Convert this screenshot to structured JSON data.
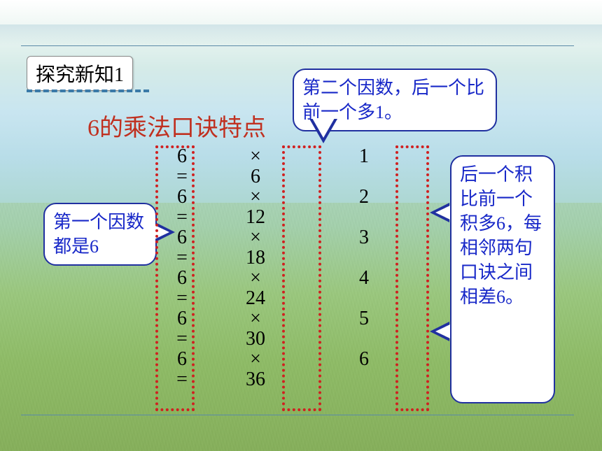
{
  "tab_label": "探究新知1",
  "title": "6的乘法口诀特点",
  "bubble_top": "第二个因数，后一个比前一个多1。",
  "bubble_left": "第一个因数都是6",
  "bubble_right": "后一个积比前一个积多6，每相邻两句口诀之间相差6。",
  "equations": {
    "factor1": [
      "6",
      "6",
      "6",
      "6",
      "6",
      "6"
    ],
    "op": "×",
    "factor2": [
      "1",
      "2",
      "3",
      "4",
      "5",
      "6"
    ],
    "eq": "=",
    "results": [
      "6",
      "12",
      "18",
      "24",
      "30",
      "36"
    ]
  },
  "colors": {
    "title_color": "#c03020",
    "bubble_border": "#2030a0",
    "bubble_text": "#1828c8",
    "dotted_box": "#d02020",
    "dash_under": "#3a7aa8",
    "hr": "#5a8aa8"
  },
  "fonts": {
    "tab_size": 28,
    "title_size": 34,
    "bubble_size": 26,
    "eq_size": 28
  }
}
